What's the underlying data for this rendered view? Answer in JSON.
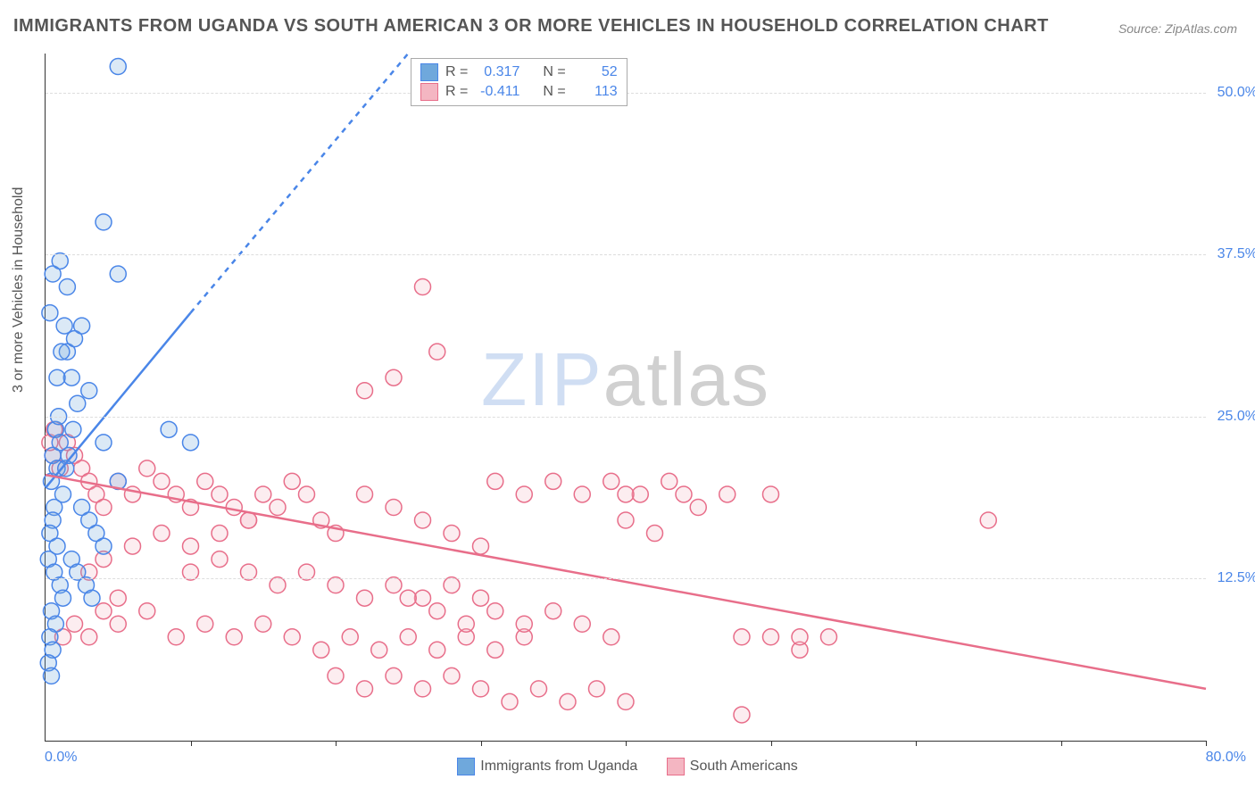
{
  "title": "IMMIGRANTS FROM UGANDA VS SOUTH AMERICAN 3 OR MORE VEHICLES IN HOUSEHOLD CORRELATION CHART",
  "source": "Source: ZipAtlas.com",
  "watermark_zip": "ZIP",
  "watermark_atlas": "atlas",
  "y_axis_label": "3 or more Vehicles in Household",
  "chart": {
    "type": "scatter",
    "background_color": "#ffffff",
    "grid_color": "#dddddd",
    "axis_color": "#333333",
    "xlim": [
      0,
      80
    ],
    "ylim": [
      0,
      53
    ],
    "x_tick_marks": [
      10,
      20,
      30,
      40,
      50,
      60,
      70,
      80
    ],
    "x_tick_labels": {
      "min": "0.0%",
      "max": "80.0%"
    },
    "y_ticks": [
      {
        "val": 12.5,
        "label": "12.5%"
      },
      {
        "val": 25.0,
        "label": "25.0%"
      },
      {
        "val": 37.5,
        "label": "37.5%"
      },
      {
        "val": 50.0,
        "label": "50.0%"
      }
    ],
    "tick_label_color": "#4a86e8",
    "tick_label_fontsize": 16,
    "marker_radius": 9,
    "marker_stroke_width": 1.5,
    "marker_fill_opacity": 0.25,
    "line_width": 2.5
  },
  "series": {
    "uganda": {
      "label": "Immigrants from Uganda",
      "color": "#6fa8dc",
      "stroke": "#4a86e8",
      "r_value": "0.317",
      "n_value": "52",
      "regression": {
        "x1": 0,
        "y1": 19.5,
        "x2_solid": 10,
        "y2_solid": 33,
        "x2_dash": 25,
        "y2_dash": 53
      },
      "points": [
        [
          0.4,
          20
        ],
        [
          0.5,
          22
        ],
        [
          0.6,
          18
        ],
        [
          0.7,
          24
        ],
        [
          0.8,
          21
        ],
        [
          1.0,
          23
        ],
        [
          1.2,
          19
        ],
        [
          0.5,
          17
        ],
        [
          0.3,
          16
        ],
        [
          0.2,
          14
        ],
        [
          0.6,
          13
        ],
        [
          0.8,
          15
        ],
        [
          1.0,
          12
        ],
        [
          1.2,
          11
        ],
        [
          0.4,
          10
        ],
        [
          0.7,
          9
        ],
        [
          0.3,
          8
        ],
        [
          0.5,
          7
        ],
        [
          0.2,
          6
        ],
        [
          0.4,
          5
        ],
        [
          5,
          52
        ],
        [
          1.5,
          30
        ],
        [
          2,
          31
        ],
        [
          2.5,
          32
        ],
        [
          1.8,
          28
        ],
        [
          2.2,
          26
        ],
        [
          0.5,
          36
        ],
        [
          1,
          37
        ],
        [
          1.5,
          35
        ],
        [
          0.3,
          33
        ],
        [
          4,
          40
        ],
        [
          5,
          36
        ],
        [
          3,
          27
        ],
        [
          4,
          23
        ],
        [
          5,
          20
        ],
        [
          2.5,
          18
        ],
        [
          3,
          17
        ],
        [
          3.5,
          16
        ],
        [
          4,
          15
        ],
        [
          1.8,
          14
        ],
        [
          2.2,
          13
        ],
        [
          2.8,
          12
        ],
        [
          3.2,
          11
        ],
        [
          1.4,
          21
        ],
        [
          1.6,
          22
        ],
        [
          1.9,
          24
        ],
        [
          0.8,
          28
        ],
        [
          1.1,
          30
        ],
        [
          1.3,
          32
        ],
        [
          0.9,
          25
        ],
        [
          8.5,
          24
        ],
        [
          10,
          23
        ]
      ]
    },
    "south_american": {
      "label": "South Americans",
      "color": "#f4b6c2",
      "stroke": "#e86e8a",
      "r_value": "-0.411",
      "n_value": "113",
      "regression": {
        "x1": 0,
        "y1": 20.5,
        "x2": 80,
        "y2": 4
      },
      "points": [
        [
          0.5,
          22
        ],
        [
          1,
          21
        ],
        [
          1.5,
          23
        ],
        [
          2,
          22
        ],
        [
          2.5,
          21
        ],
        [
          3,
          20
        ],
        [
          3.5,
          19
        ],
        [
          4,
          18
        ],
        [
          5,
          20
        ],
        [
          6,
          19
        ],
        [
          7,
          21
        ],
        [
          8,
          20
        ],
        [
          9,
          19
        ],
        [
          10,
          18
        ],
        [
          11,
          20
        ],
        [
          12,
          19
        ],
        [
          13,
          18
        ],
        [
          14,
          17
        ],
        [
          15,
          19
        ],
        [
          16,
          18
        ],
        [
          17,
          20
        ],
        [
          18,
          19
        ],
        [
          19,
          17
        ],
        [
          20,
          16
        ],
        [
          22,
          19
        ],
        [
          24,
          18
        ],
        [
          26,
          17
        ],
        [
          28,
          16
        ],
        [
          30,
          15
        ],
        [
          3,
          8
        ],
        [
          5,
          9
        ],
        [
          7,
          10
        ],
        [
          9,
          8
        ],
        [
          11,
          9
        ],
        [
          13,
          8
        ],
        [
          15,
          9
        ],
        [
          17,
          8
        ],
        [
          19,
          7
        ],
        [
          21,
          8
        ],
        [
          23,
          7
        ],
        [
          25,
          8
        ],
        [
          27,
          7
        ],
        [
          29,
          8
        ],
        [
          31,
          7
        ],
        [
          33,
          8
        ],
        [
          10,
          13
        ],
        [
          12,
          14
        ],
        [
          14,
          13
        ],
        [
          16,
          12
        ],
        [
          18,
          13
        ],
        [
          20,
          12
        ],
        [
          22,
          11
        ],
        [
          24,
          12
        ],
        [
          26,
          11
        ],
        [
          28,
          12
        ],
        [
          30,
          11
        ],
        [
          24,
          28
        ],
        [
          22,
          27
        ],
        [
          26,
          35
        ],
        [
          27,
          30
        ],
        [
          31,
          20
        ],
        [
          33,
          19
        ],
        [
          35,
          20
        ],
        [
          37,
          19
        ],
        [
          39,
          20
        ],
        [
          41,
          19
        ],
        [
          43,
          20
        ],
        [
          45,
          18
        ],
        [
          47,
          19
        ],
        [
          20,
          5
        ],
        [
          22,
          4
        ],
        [
          24,
          5
        ],
        [
          26,
          4
        ],
        [
          28,
          5
        ],
        [
          30,
          4
        ],
        [
          32,
          3
        ],
        [
          34,
          4
        ],
        [
          36,
          3
        ],
        [
          38,
          4
        ],
        [
          40,
          3
        ],
        [
          25,
          11
        ],
        [
          27,
          10
        ],
        [
          29,
          9
        ],
        [
          31,
          10
        ],
        [
          33,
          9
        ],
        [
          35,
          10
        ],
        [
          37,
          9
        ],
        [
          39,
          8
        ],
        [
          48,
          2
        ],
        [
          48,
          8
        ],
        [
          50,
          8
        ],
        [
          52,
          7
        ],
        [
          54,
          8
        ],
        [
          40,
          17
        ],
        [
          42,
          16
        ],
        [
          40,
          19
        ],
        [
          44,
          19
        ],
        [
          50,
          19
        ],
        [
          52,
          8
        ],
        [
          65,
          17
        ],
        [
          4,
          14
        ],
        [
          6,
          15
        ],
        [
          8,
          16
        ],
        [
          10,
          15
        ],
        [
          12,
          16
        ],
        [
          14,
          17
        ],
        [
          0.3,
          23
        ],
        [
          0.6,
          24
        ],
        [
          1.2,
          8
        ],
        [
          2,
          9
        ],
        [
          3,
          13
        ],
        [
          4,
          10
        ],
        [
          5,
          11
        ]
      ]
    }
  },
  "legend_stats": {
    "r_label": "R  =",
    "n_label": "N  ="
  }
}
